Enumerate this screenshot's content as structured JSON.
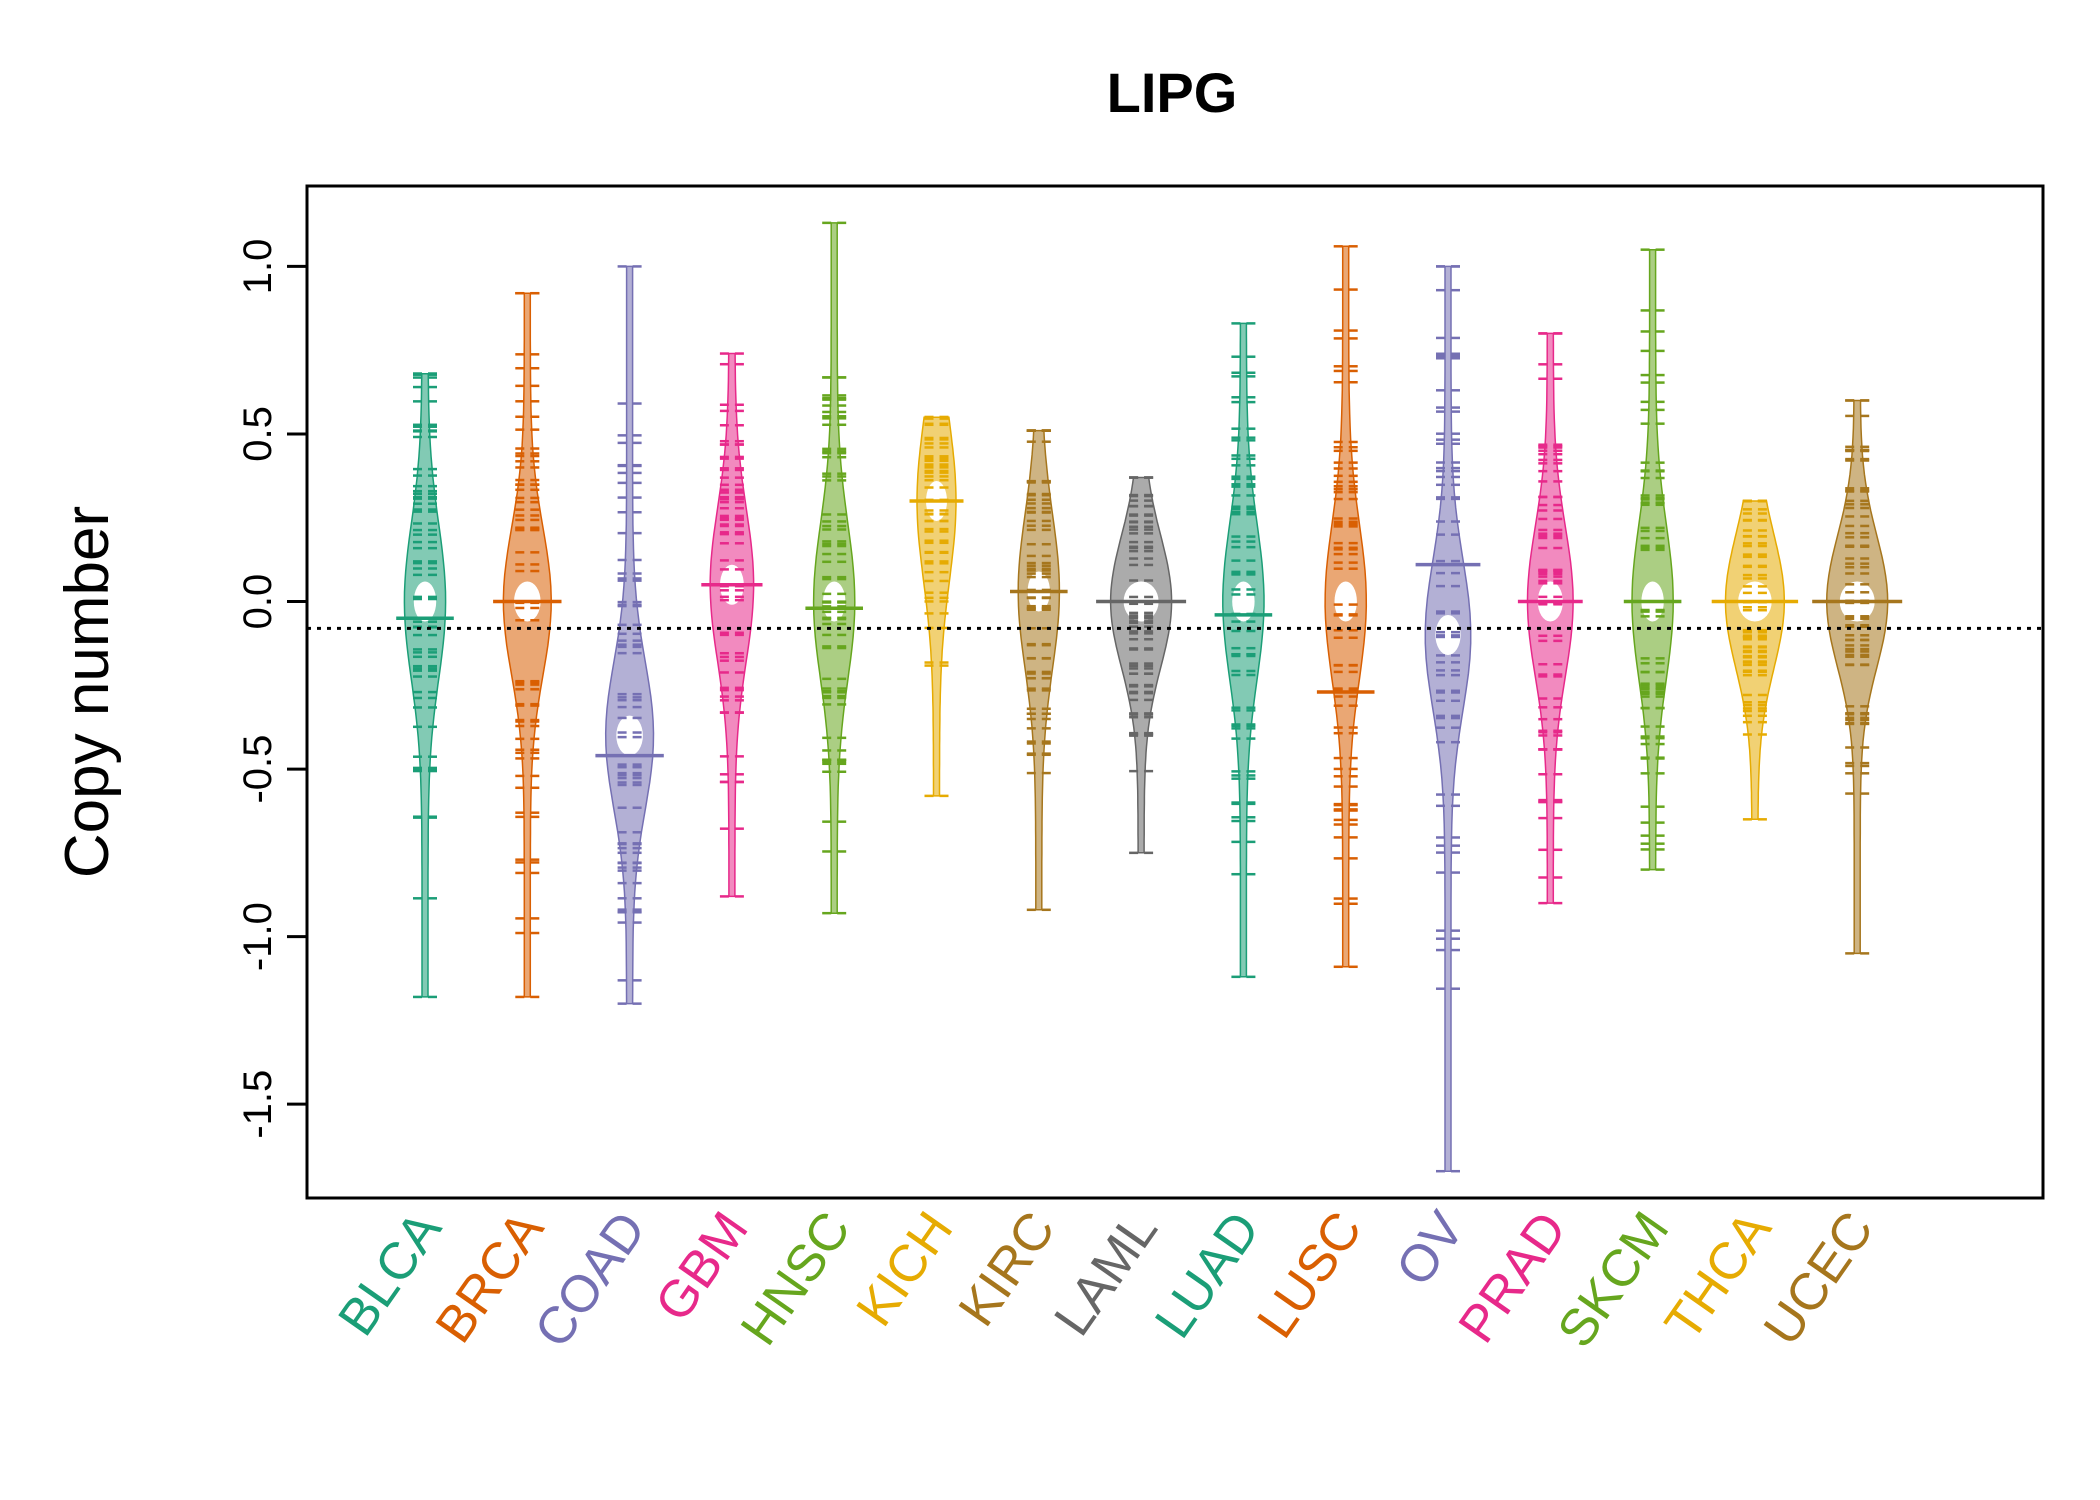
{
  "chart_data": {
    "type": "beanplot",
    "title": "LIPG",
    "xlabel": "",
    "ylabel": "Copy number",
    "ylim": [
      -1.78,
      1.24
    ],
    "yticks": [
      1.0,
      0.5,
      0.0,
      -0.5,
      -1.0,
      -1.5
    ],
    "ytick_labels": [
      "1.0",
      "0.5",
      "0.0",
      "-0.5",
      "-1.0",
      "-1.5"
    ],
    "reference_line": -0.08,
    "categories": [
      "BLCA",
      "BRCA",
      "COAD",
      "GBM",
      "HNSC",
      "KICH",
      "KIRC",
      "LAML",
      "LUAD",
      "LUSC",
      "OV",
      "PRAD",
      "SKCM",
      "THCA",
      "UCEC"
    ],
    "colors": [
      "#1B9E77",
      "#D95F02",
      "#7570B3",
      "#E7298A",
      "#66A61E",
      "#E6AB02",
      "#A6761D",
      "#666666",
      "#1B9E77",
      "#D95F02",
      "#7570B3",
      "#E7298A",
      "#66A61E",
      "#E6AB02",
      "#A6761D"
    ],
    "series": [
      {
        "name": "BLCA",
        "mean": -0.05,
        "mode": 0.0,
        "min": -1.18,
        "max": 0.68,
        "width": 0.35
      },
      {
        "name": "BRCA",
        "mean": 0.0,
        "mode": 0.0,
        "min": -1.18,
        "max": 0.92,
        "width": 0.5
      },
      {
        "name": "COAD",
        "mean": -0.46,
        "mode": -0.4,
        "min": -1.2,
        "max": 1.0,
        "width": 0.5
      },
      {
        "name": "GBM",
        "mean": 0.05,
        "mode": 0.05,
        "min": -0.88,
        "max": 0.74,
        "width": 0.4
      },
      {
        "name": "HNSC",
        "mean": -0.02,
        "mode": 0.0,
        "min": -0.93,
        "max": 1.13,
        "width": 0.35
      },
      {
        "name": "KICH",
        "mean": 0.3,
        "mode": 0.3,
        "min": -0.58,
        "max": 0.55,
        "width": 0.3
      },
      {
        "name": "KIRC",
        "mean": 0.03,
        "mode": 0.03,
        "min": -0.92,
        "max": 0.51,
        "width": 0.35
      },
      {
        "name": "LAML",
        "mean": 0.0,
        "mode": 0.0,
        "min": -0.75,
        "max": 0.37,
        "width": 0.8
      },
      {
        "name": "LUAD",
        "mean": -0.04,
        "mode": 0.0,
        "min": -1.12,
        "max": 0.83,
        "width": 0.35
      },
      {
        "name": "LUSC",
        "mean": -0.27,
        "mode": 0.0,
        "min": -1.09,
        "max": 1.06,
        "width": 0.35
      },
      {
        "name": "OV",
        "mean": 0.11,
        "mode": -0.1,
        "min": -1.7,
        "max": 1.0,
        "width": 0.45
      },
      {
        "name": "PRAD",
        "mean": 0.0,
        "mode": 0.0,
        "min": -0.9,
        "max": 0.8,
        "width": 0.45
      },
      {
        "name": "SKCM",
        "mean": 0.0,
        "mode": 0.0,
        "min": -0.8,
        "max": 1.05,
        "width": 0.35
      },
      {
        "name": "THCA",
        "mean": 0.0,
        "mode": 0.0,
        "min": -0.65,
        "max": 0.3,
        "width": 0.75
      },
      {
        "name": "UCEC",
        "mean": 0.0,
        "mode": 0.0,
        "min": -1.05,
        "max": 0.6,
        "width": 0.8
      }
    ]
  }
}
